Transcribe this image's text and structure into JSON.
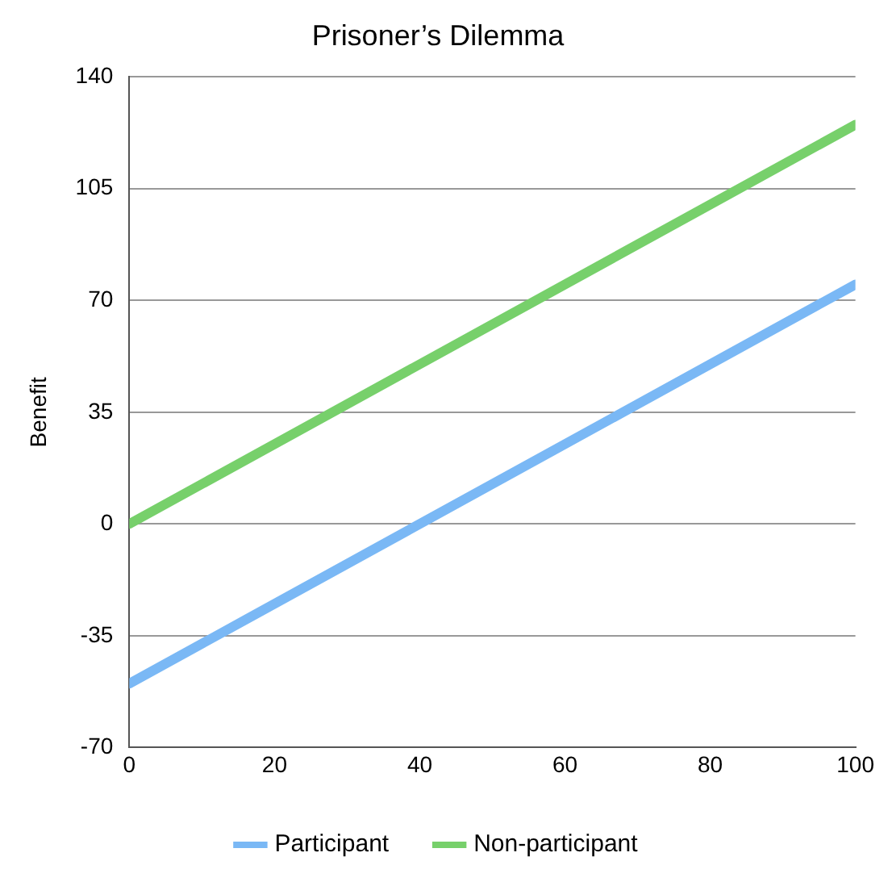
{
  "chart_data": {
    "type": "line",
    "title": "Prisoner’s Dilemma",
    "ylabel": "Benefit",
    "x": [
      0,
      100
    ],
    "series": [
      {
        "name": "Participant",
        "color": "#7ab8f5",
        "values": [
          -50,
          75
        ]
      },
      {
        "name": "Non-participant",
        "color": "#77d06b",
        "values": [
          0,
          125
        ]
      }
    ],
    "xlim": [
      0,
      100
    ],
    "xticks": [
      0,
      20,
      40,
      60,
      80,
      100
    ],
    "ylim": [
      -70,
      140
    ],
    "yticks": [
      -70,
      -35,
      0,
      35,
      70,
      105,
      140
    ],
    "grid": "y",
    "legend": "bottom",
    "marker": "none",
    "line_style": "solid"
  }
}
